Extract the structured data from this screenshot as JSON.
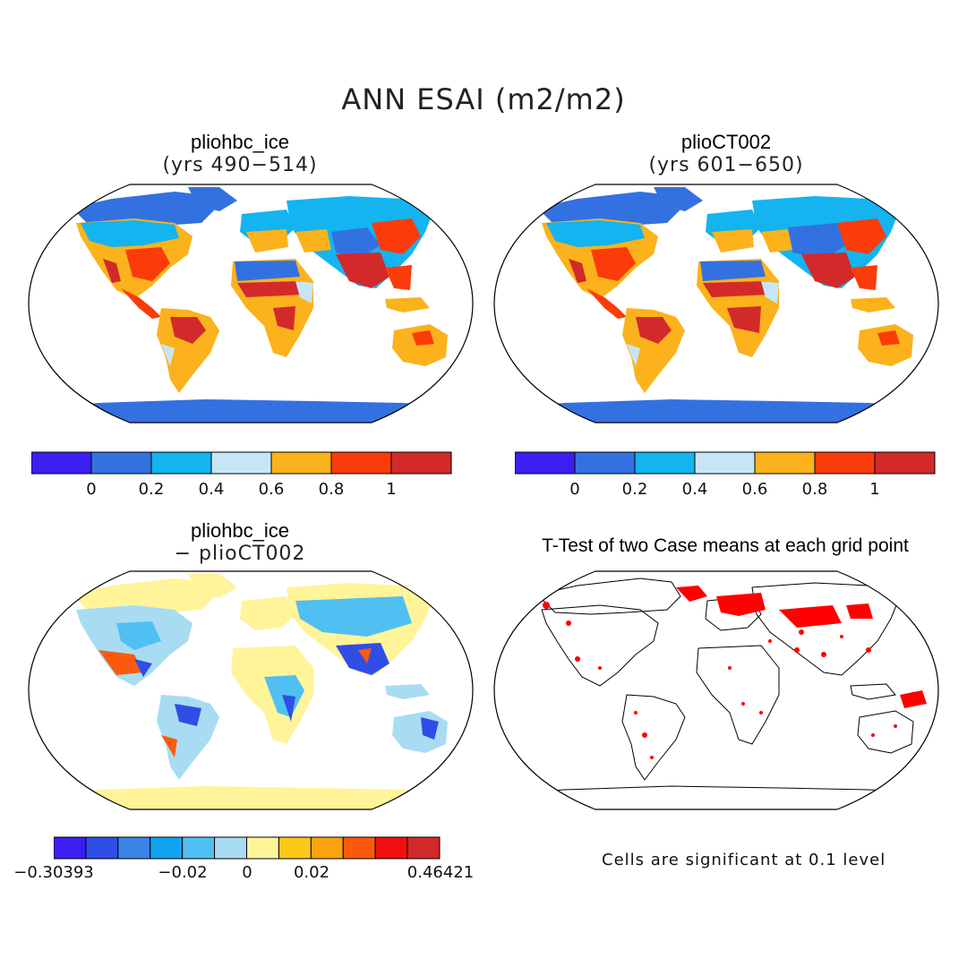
{
  "figure": {
    "title": "ANN ESAI (m2/m2)"
  },
  "panels": {
    "top_left": {
      "title": "pliohbc_ice",
      "subtitle": "(yrs 490−514)"
    },
    "top_right": {
      "title": "plioCT002",
      "subtitle": "(yrs 601−650)"
    },
    "bottom_left": {
      "title": "pliohbc_ice",
      "subtitle": "− plioCT002"
    },
    "bottom_right": {
      "title": "T-Test of two Case means at each grid point",
      "note": "Cells are significant at 0.1 level"
    }
  },
  "colorbars": {
    "abs": {
      "colors": [
        "#3b1ff2",
        "#3471e0",
        "#13b4f0",
        "#c6e6f6",
        "#fbb21c",
        "#fb3c0a",
        "#d22a2a"
      ],
      "labels": [
        "0",
        "0.2",
        "0.4",
        "0.6",
        "0.8",
        "1"
      ]
    },
    "diff": {
      "colors": [
        "#3b1ff2",
        "#2f4ee6",
        "#3a84e6",
        "#12a4f2",
        "#50c0f2",
        "#a8dcf2",
        "#fff49a",
        "#fbc818",
        "#fba20e",
        "#fb5a0e",
        "#f01010",
        "#d22a2a"
      ],
      "labels": [
        "−0.30393",
        "−0.02",
        "0",
        "0.02",
        "0.46421"
      ]
    }
  },
  "map_colors": {
    "ocean": "#ffffff",
    "coast": "#000000",
    "significant": "#ff0000"
  }
}
